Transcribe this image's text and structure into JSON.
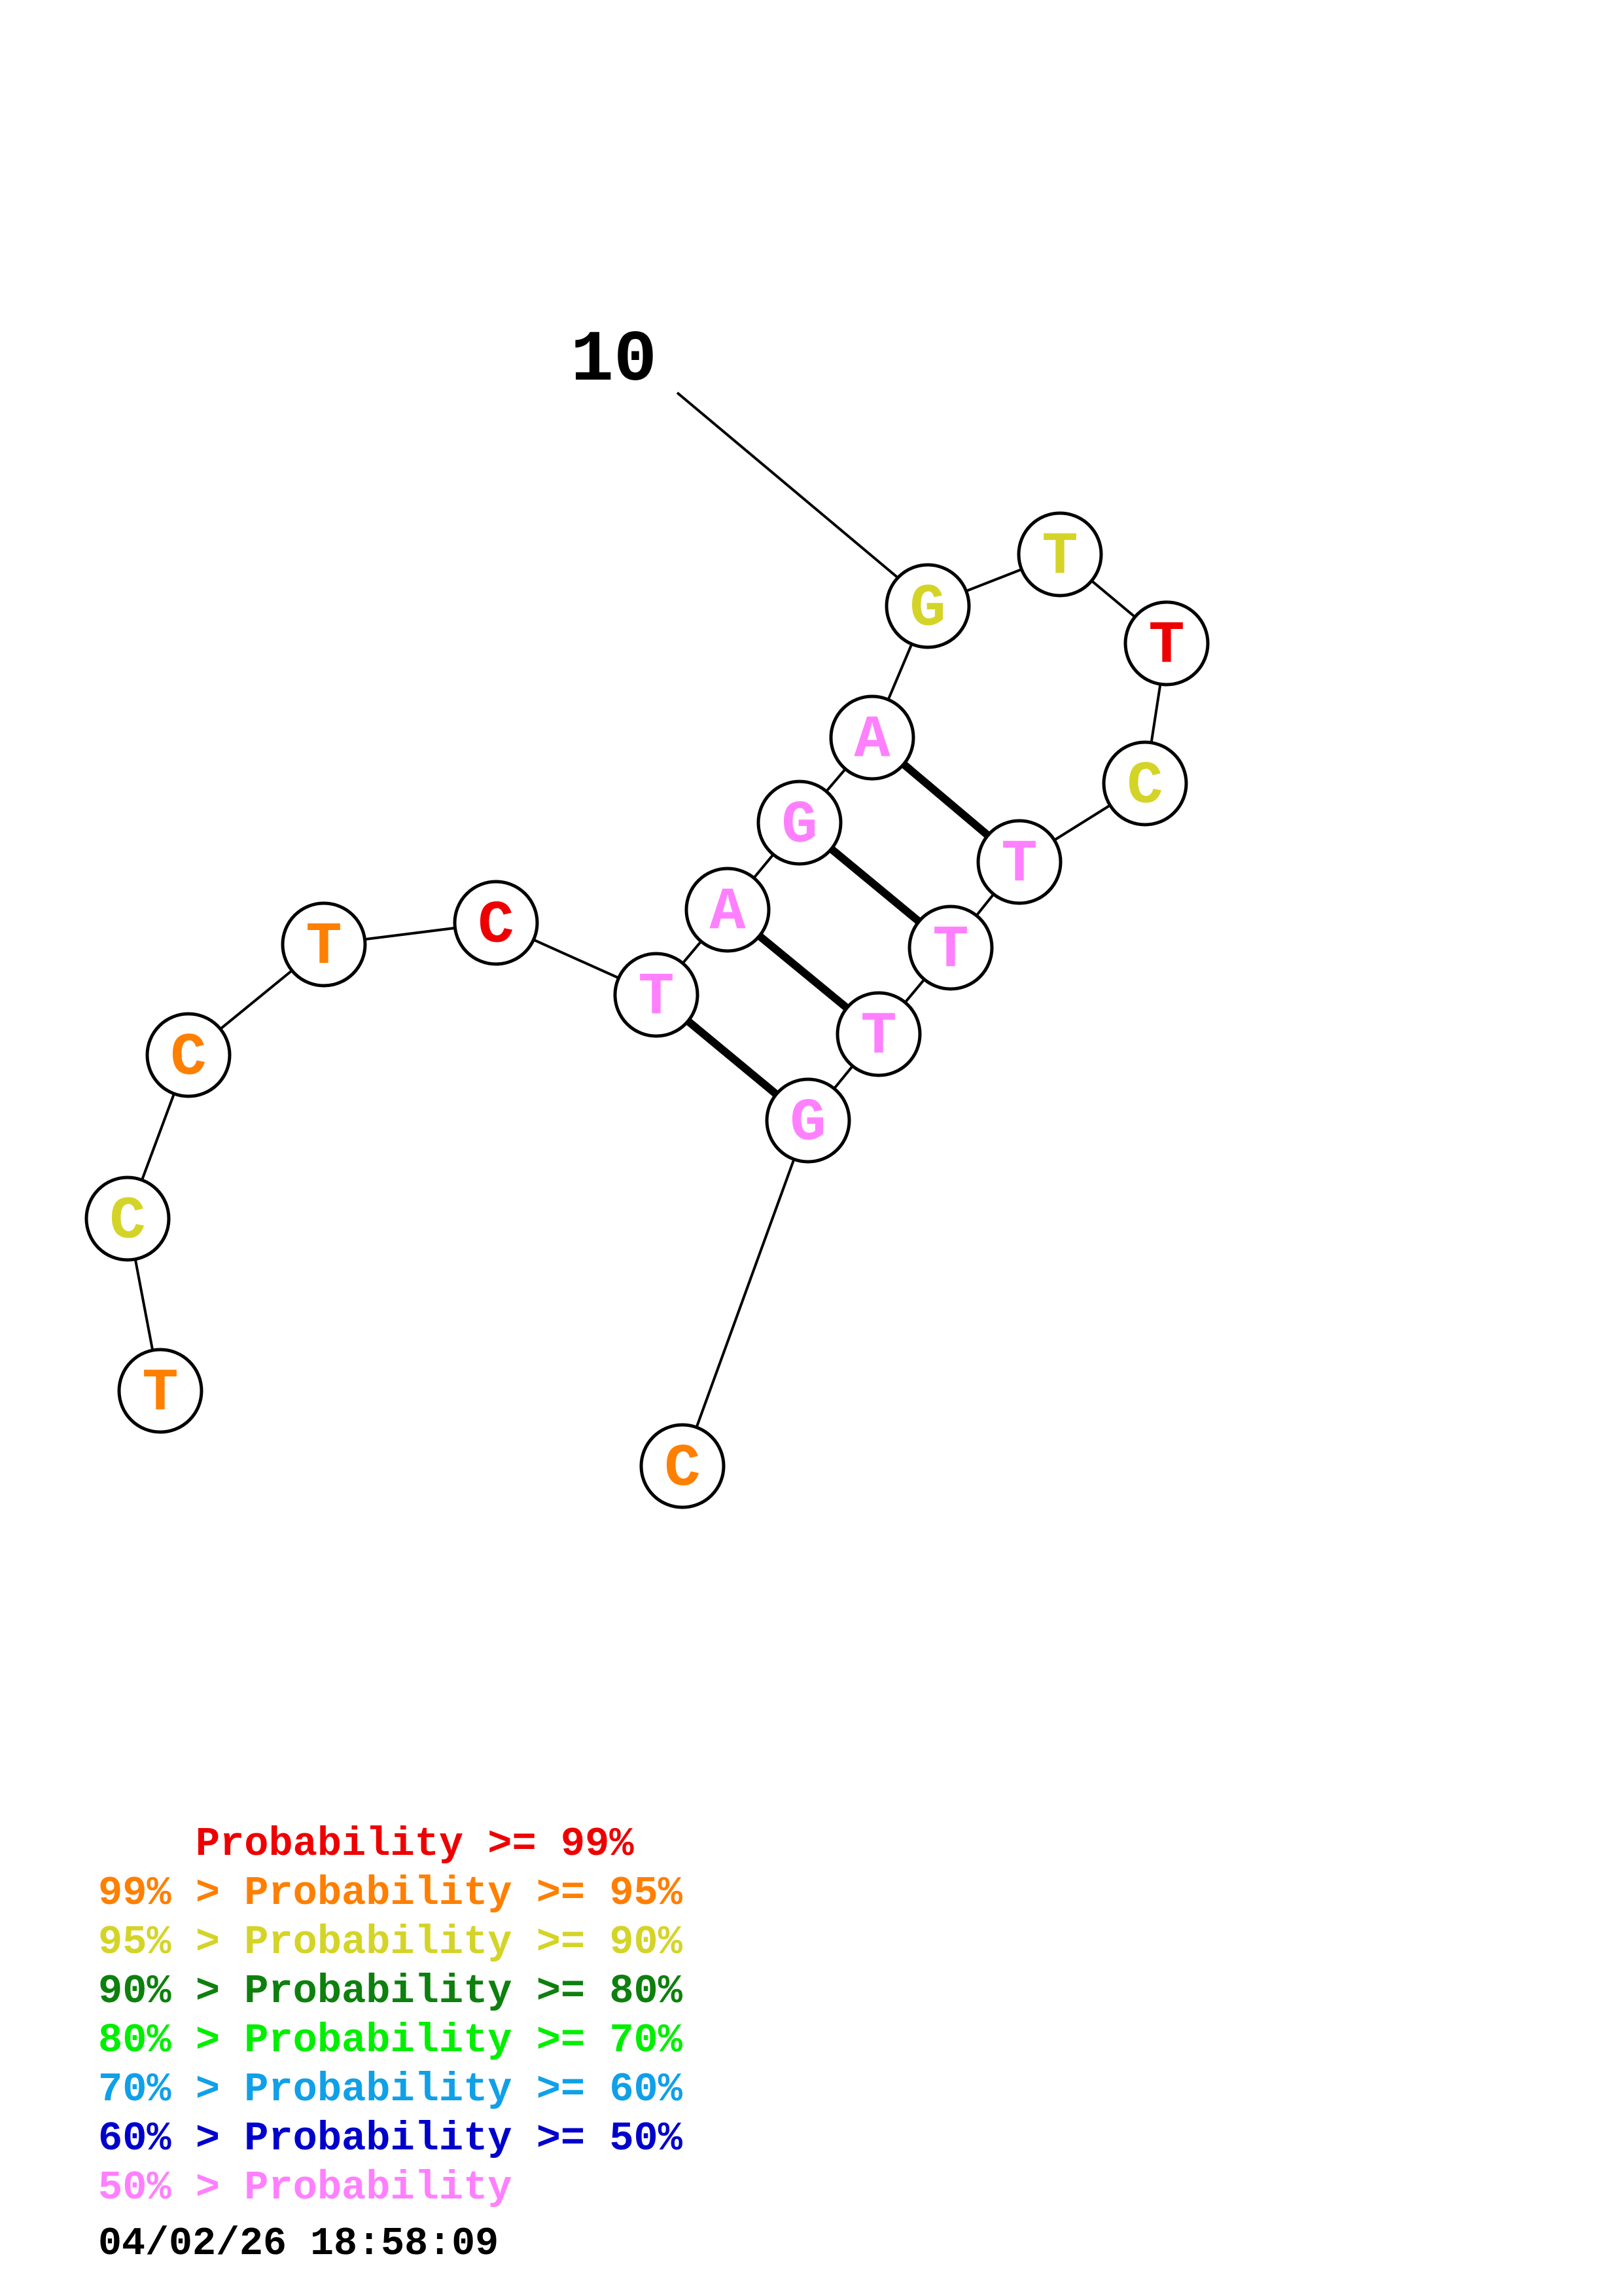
{
  "structure": {
    "index_label": "10",
    "nucleotides": [
      {
        "base": "T",
        "color": "#ff7f00"
      },
      {
        "base": "C",
        "color": "#d4d428"
      },
      {
        "base": "C",
        "color": "#ff7f00"
      },
      {
        "base": "T",
        "color": "#ff7f00"
      },
      {
        "base": "C",
        "color": "#ee0000"
      },
      {
        "base": "T",
        "color": "#ff80ff"
      },
      {
        "base": "A",
        "color": "#ff80ff"
      },
      {
        "base": "G",
        "color": "#ff80ff"
      },
      {
        "base": "A",
        "color": "#ff80ff"
      },
      {
        "base": "G",
        "color": "#d4d428"
      },
      {
        "base": "T",
        "color": "#d4d428"
      },
      {
        "base": "T",
        "color": "#ee0000"
      },
      {
        "base": "C",
        "color": "#d4d428"
      },
      {
        "base": "T",
        "color": "#ff80ff"
      },
      {
        "base": "T",
        "color": "#ff80ff"
      },
      {
        "base": "T",
        "color": "#ff80ff"
      },
      {
        "base": "G",
        "color": "#ff80ff"
      },
      {
        "base": "C",
        "color": "#ff7f00"
      }
    ],
    "base_pairs": [
      [
        6,
        17
      ],
      [
        7,
        16
      ],
      [
        8,
        15
      ],
      [
        9,
        14
      ]
    ]
  },
  "legend": [
    {
      "text": "    Probability >= 99%",
      "color": "#ee0000"
    },
    {
      "text": "99% > Probability >= 95%",
      "color": "#ff7f00"
    },
    {
      "text": "95% > Probability >= 90%",
      "color": "#d4d428"
    },
    {
      "text": "90% > Probability >= 80%",
      "color": "#0d800d"
    },
    {
      "text": "80% > Probability >= 70%",
      "color": "#00ee00"
    },
    {
      "text": "70% > Probability >= 60%",
      "color": "#10a0e8"
    },
    {
      "text": "60% > Probability >= 50%",
      "color": "#0000cc"
    },
    {
      "text": "50% > Probability",
      "color": "#ff80ff"
    }
  ],
  "timestamp": "04/02/26 18:58:09"
}
